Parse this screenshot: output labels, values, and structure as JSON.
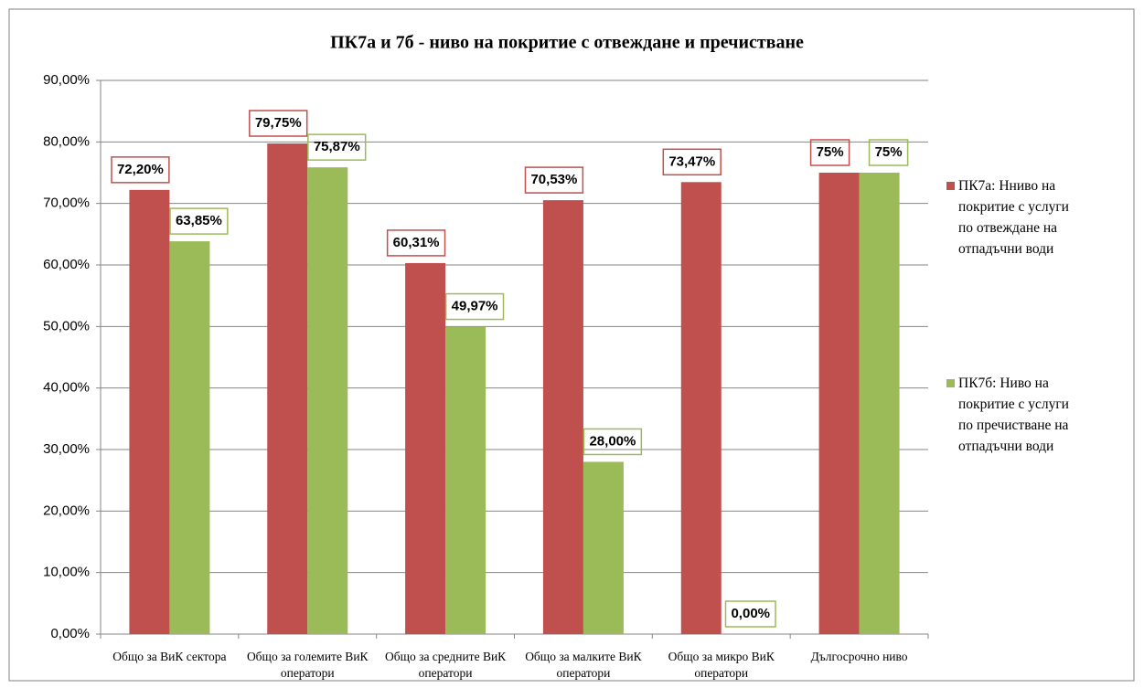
{
  "chart_data": {
    "type": "bar",
    "title": "ПК7а и 7б - ниво на покритие с отвеждане и пречистване",
    "categories": [
      "Общо за ВиК сектора",
      "Общо за големите ВиК оператори",
      "Общо за средните ВиК оператори",
      "Общо за малките ВиК оператори",
      "Общо за микро ВиК оператори",
      "Дългосрочно ниво"
    ],
    "series": [
      {
        "name": "ПК7а: Нниво на покритие с услуги по отвеждане на отпадъчни води",
        "color": "#c0504d",
        "values": [
          72.2,
          79.75,
          60.31,
          70.53,
          73.47,
          75
        ],
        "value_labels": [
          "72,20%",
          "79,75%",
          "60,31%",
          "70,53%",
          "73,47%",
          "75%"
        ]
      },
      {
        "name": "ПК7б: Ниво на покритие с услуги по пречистване на отпадъчни води",
        "color": "#9bbb59",
        "values": [
          63.85,
          75.87,
          49.97,
          28.0,
          0.0,
          75
        ],
        "value_labels": [
          "63,85%",
          "75,87%",
          "49,97%",
          "28,00%",
          "0,00%",
          "75%"
        ]
      }
    ],
    "ylim": [
      0,
      90
    ],
    "yticks": [
      {
        "value": 0,
        "label": "0,00%"
      },
      {
        "value": 10,
        "label": "10,00%"
      },
      {
        "value": 20,
        "label": "20,00%"
      },
      {
        "value": 30,
        "label": "30,00%"
      },
      {
        "value": 40,
        "label": "40,00%"
      },
      {
        "value": 50,
        "label": "50,00%"
      },
      {
        "value": 60,
        "label": "60,00%"
      },
      {
        "value": 70,
        "label": "70,00%"
      },
      {
        "value": 80,
        "label": "80,00%"
      },
      {
        "value": 90,
        "label": "90,00%"
      }
    ],
    "grid": true,
    "legend": "right"
  }
}
